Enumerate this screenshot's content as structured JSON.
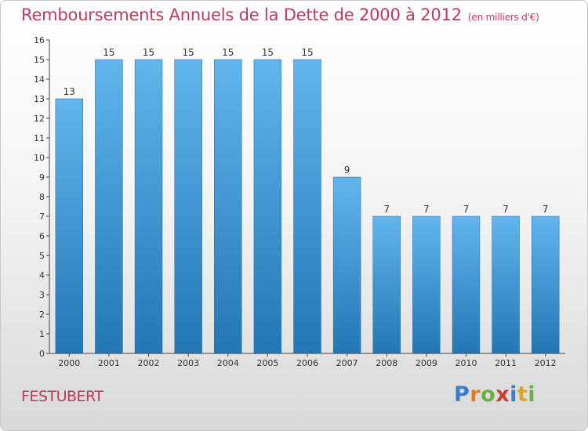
{
  "title": "Remboursements Annuels de la Dette de 2000 à 2012",
  "unit": "(en milliers d'€)",
  "commune": "FESTUBERT",
  "logo": {
    "letters": [
      "P",
      "r",
      "o",
      "x",
      "i",
      "t",
      "i"
    ],
    "colors": [
      "#3a7fc8",
      "#e07b1f",
      "#6ab23d",
      "#d23a2a",
      "#3a7fc8",
      "#e0a51f",
      "#6ab23d"
    ]
  },
  "colors": {
    "title": "#c0395a",
    "bar_light": "#62b4ec",
    "bar_dark": "#2277b5"
  },
  "chart_data": {
    "type": "bar",
    "categories": [
      "2000",
      "2001",
      "2002",
      "2003",
      "2004",
      "2005",
      "2006",
      "2007",
      "2008",
      "2009",
      "2010",
      "2011",
      "2012"
    ],
    "values": [
      13,
      15,
      15,
      15,
      15,
      15,
      15,
      9,
      7,
      7,
      7,
      7,
      7
    ],
    "data_labels": [
      "13",
      "15",
      "15",
      "15",
      "15",
      "15",
      "15",
      "9",
      "7",
      "7",
      "7",
      "7",
      "7"
    ],
    "ylim": [
      0,
      16
    ],
    "yticks": [
      0,
      1,
      2,
      3,
      4,
      5,
      6,
      7,
      8,
      9,
      10,
      11,
      12,
      13,
      14,
      15,
      16
    ],
    "grid": false
  }
}
